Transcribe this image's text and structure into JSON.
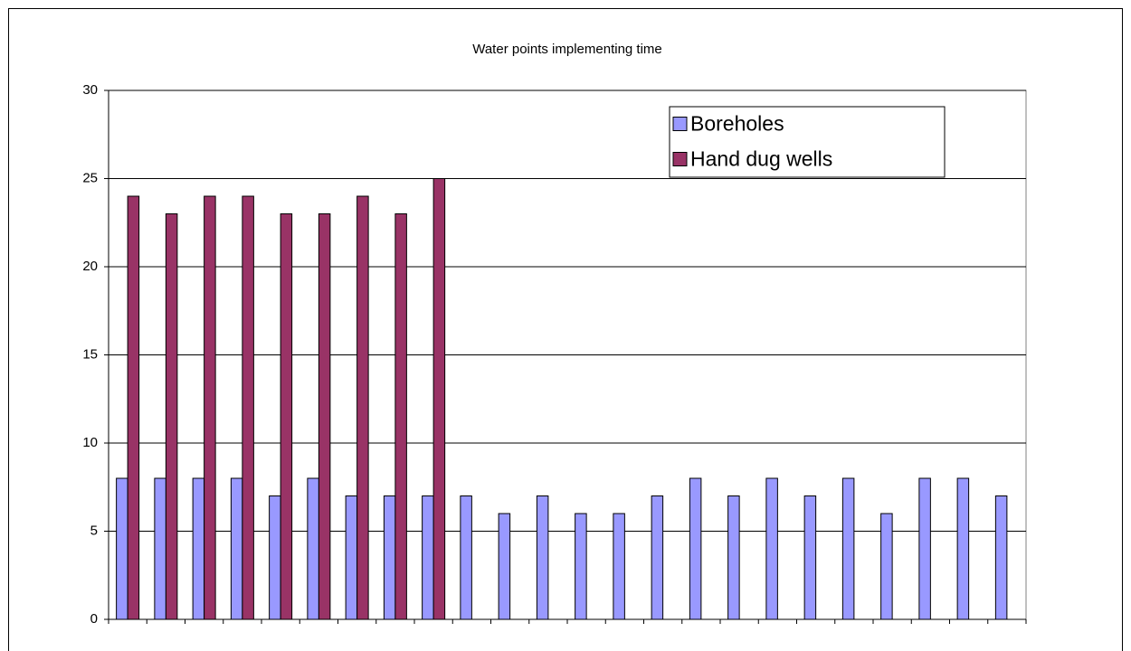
{
  "chart_data": {
    "type": "bar",
    "title": "Water points implementing time",
    "categories": [
      null,
      null,
      null,
      null,
      null,
      null,
      null,
      null,
      null,
      null,
      null,
      null,
      null,
      null,
      null,
      null,
      null,
      null,
      null,
      null,
      null,
      null,
      null,
      null
    ],
    "series": [
      {
        "name": "Boreholes",
        "color": "#9999ff",
        "values": [
          8,
          8,
          8,
          8,
          7,
          8,
          7,
          7,
          7,
          7,
          6,
          7,
          6,
          6,
          7,
          8,
          7,
          8,
          7,
          8,
          6,
          8,
          8,
          7
        ]
      },
      {
        "name": "Hand dug wells",
        "color": "#993366",
        "values": [
          24,
          23,
          24,
          24,
          23,
          23,
          24,
          23,
          25,
          null,
          null,
          null,
          null,
          null,
          null,
          null,
          null,
          null,
          null,
          null,
          null,
          null,
          null,
          null
        ]
      }
    ],
    "ylim": [
      0,
      30
    ],
    "yticks": [
      0,
      5,
      10,
      15,
      20,
      25,
      30
    ],
    "grid": true,
    "legend": "upper right"
  }
}
